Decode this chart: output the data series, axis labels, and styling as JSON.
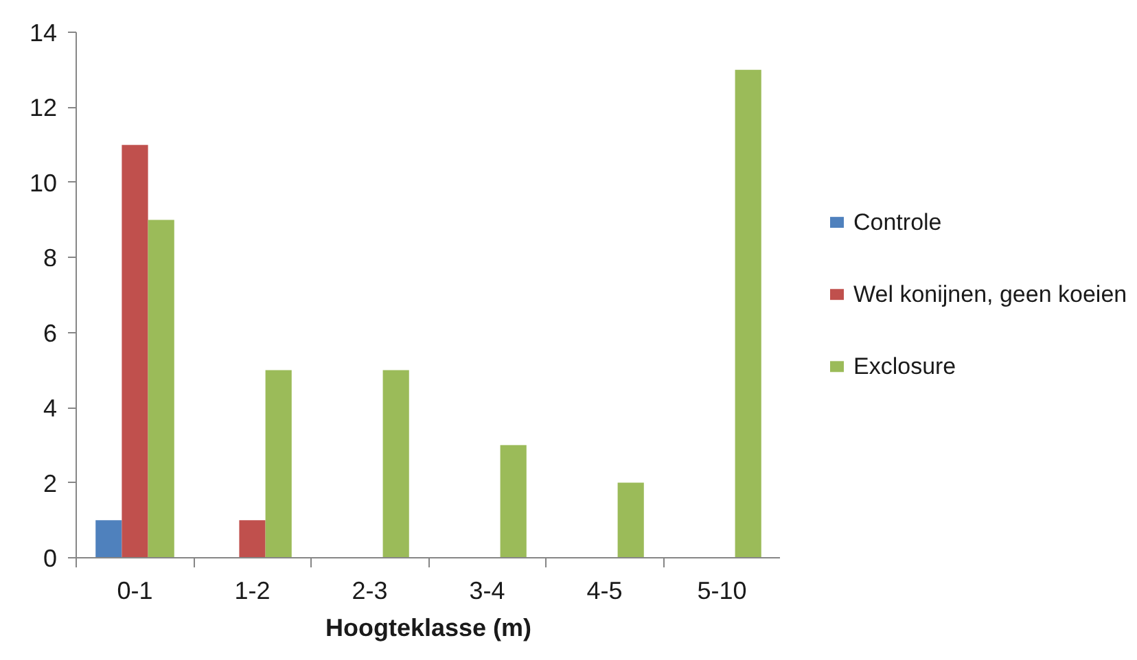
{
  "chart_data": {
    "type": "bar",
    "categories": [
      "0-1",
      "1-2",
      "2-3",
      "3-4",
      "4-5",
      "5-10"
    ],
    "series": [
      {
        "name": "Controle",
        "color": "#4f81bd",
        "values": [
          1,
          0,
          0,
          0,
          0,
          0
        ]
      },
      {
        "name": "Wel konijnen, geen koeien",
        "color": "#c0504d",
        "values": [
          11,
          1,
          0,
          0,
          0,
          0
        ]
      },
      {
        "name": "Exclosure",
        "color": "#9bbb59",
        "values": [
          9,
          5,
          5,
          3,
          2,
          13
        ]
      }
    ],
    "xlabel": "Hoogteklasse (m)",
    "ylim": [
      0,
      14
    ],
    "yticks": [
      0,
      2,
      4,
      6,
      8,
      10,
      12,
      14
    ],
    "grid": false,
    "legend": "right"
  }
}
